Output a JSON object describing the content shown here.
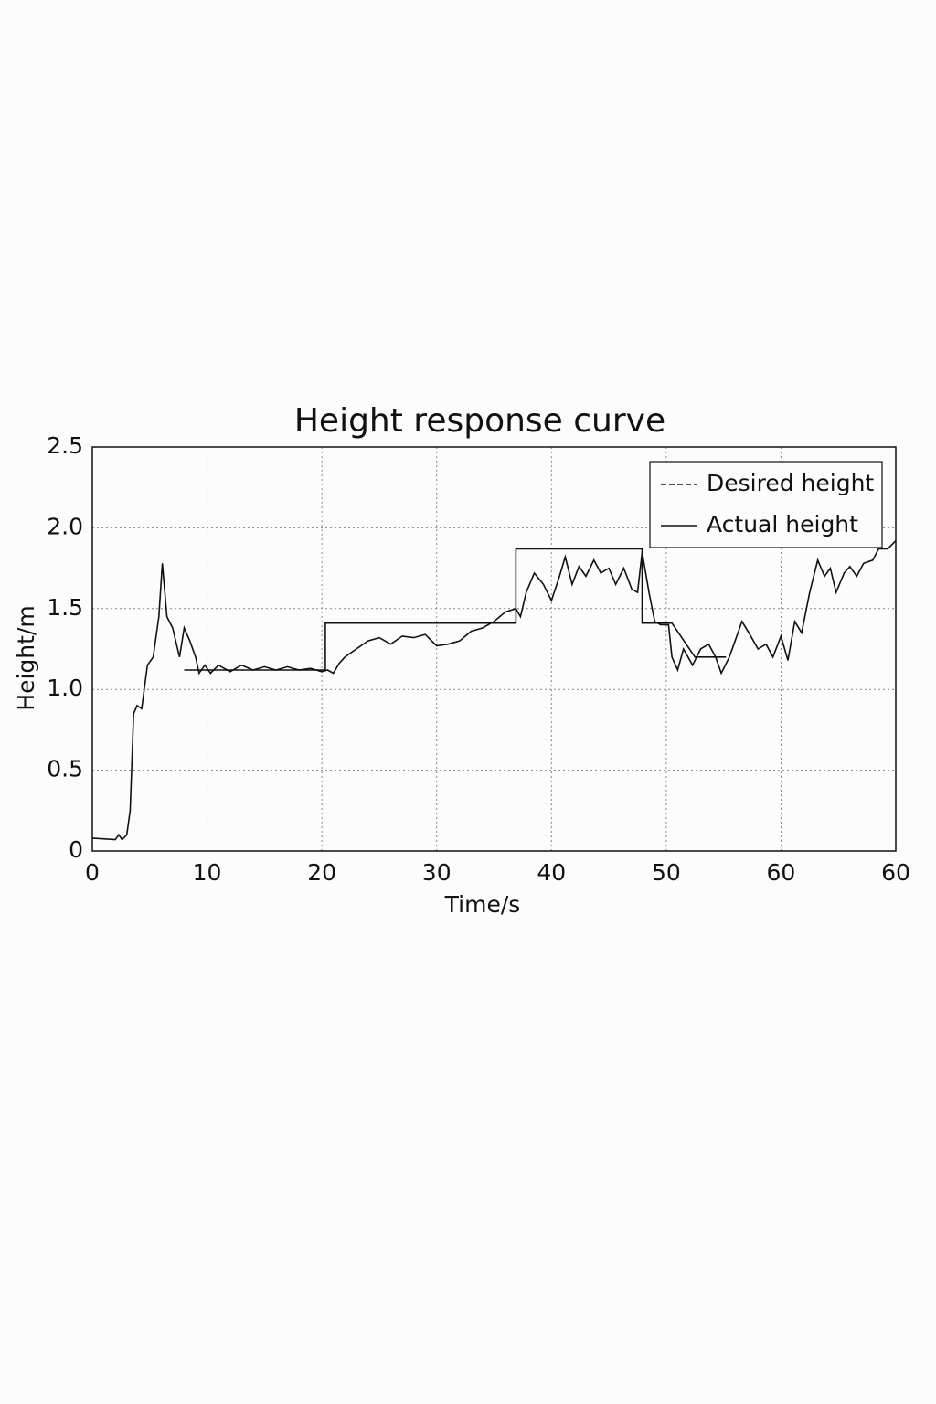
{
  "chart_data": {
    "type": "line",
    "title": "Height response curve",
    "x_label": "Time/s",
    "y_label": "Height/m",
    "xlim": [
      0,
      70
    ],
    "xticks": [
      0,
      10,
      20,
      30,
      40,
      50,
      60
    ],
    "x_end_label": "60",
    "ylim": [
      0,
      2.5
    ],
    "yticks": [
      0,
      0.5,
      {
        "value": 1,
        "label": "1.0"
      },
      1.5,
      {
        "value": 2,
        "label": "2.0"
      },
      2.5
    ],
    "grid": true,
    "legend": "upper right",
    "series": [
      {
        "name": "Desired height",
        "color": "#111111",
        "x": [
          8,
          20.3,
          20.3,
          36.9,
          36.9,
          47.9,
          47.9,
          50.5,
          52.5,
          52.5,
          55.2
        ],
        "values": [
          1.12,
          1.12,
          1.41,
          1.41,
          1.87,
          1.87,
          1.41,
          1.41,
          1.2,
          1.2,
          1.2
        ]
      },
      {
        "name": "Actual height",
        "color": "#111111",
        "x": [
          0,
          2,
          2.3,
          2.6,
          3,
          3.3,
          3.6,
          3.9,
          4.3,
          4.8,
          5.3,
          5.8,
          6.1,
          6.5,
          7,
          7.6,
          8,
          8.5,
          9,
          9.3,
          9.8,
          10.3,
          11,
          12,
          13,
          14,
          15,
          16,
          17,
          18,
          19,
          20,
          20.5,
          21,
          21.5,
          22,
          23,
          24,
          25,
          26,
          27,
          28,
          29,
          30,
          31,
          32,
          33,
          34,
          35,
          36,
          36.9,
          37.3,
          37.8,
          38.5,
          39.3,
          40,
          40.7,
          41.2,
          41.8,
          42.4,
          43,
          43.7,
          44.3,
          45,
          45.6,
          46.3,
          47,
          47.5,
          47.9,
          48.5,
          49,
          49.5,
          50.2,
          50.5,
          51,
          51.5,
          52.3,
          53,
          53.7,
          54.3,
          54.8,
          55.5,
          56,
          56.6,
          57.2,
          58,
          58.7,
          59.3,
          60,
          60.6,
          61.2,
          61.8,
          62.5,
          63.2,
          63.8,
          64.3,
          64.8,
          65.5,
          66,
          66.6,
          67.2,
          68,
          68.5,
          69.3,
          70
        ],
        "values": [
          0.08,
          0.07,
          0.1,
          0.07,
          0.1,
          0.25,
          0.85,
          0.9,
          0.88,
          1.15,
          1.2,
          1.45,
          1.78,
          1.45,
          1.38,
          1.2,
          1.38,
          1.3,
          1.2,
          1.1,
          1.15,
          1.1,
          1.15,
          1.11,
          1.15,
          1.12,
          1.14,
          1.12,
          1.14,
          1.12,
          1.13,
          1.11,
          1.12,
          1.1,
          1.16,
          1.2,
          1.25,
          1.3,
          1.32,
          1.28,
          1.33,
          1.32,
          1.34,
          1.27,
          1.28,
          1.3,
          1.36,
          1.38,
          1.42,
          1.48,
          1.5,
          1.45,
          1.6,
          1.72,
          1.65,
          1.55,
          1.7,
          1.82,
          1.65,
          1.76,
          1.7,
          1.8,
          1.72,
          1.75,
          1.65,
          1.75,
          1.62,
          1.6,
          1.85,
          1.6,
          1.42,
          1.4,
          1.4,
          1.2,
          1.12,
          1.25,
          1.15,
          1.25,
          1.28,
          1.2,
          1.1,
          1.2,
          1.3,
          1.42,
          1.35,
          1.25,
          1.28,
          1.2,
          1.33,
          1.18,
          1.42,
          1.35,
          1.6,
          1.8,
          1.7,
          1.75,
          1.6,
          1.72,
          1.76,
          1.7,
          1.78,
          1.8,
          1.87,
          1.87,
          1.92
        ]
      }
    ]
  }
}
